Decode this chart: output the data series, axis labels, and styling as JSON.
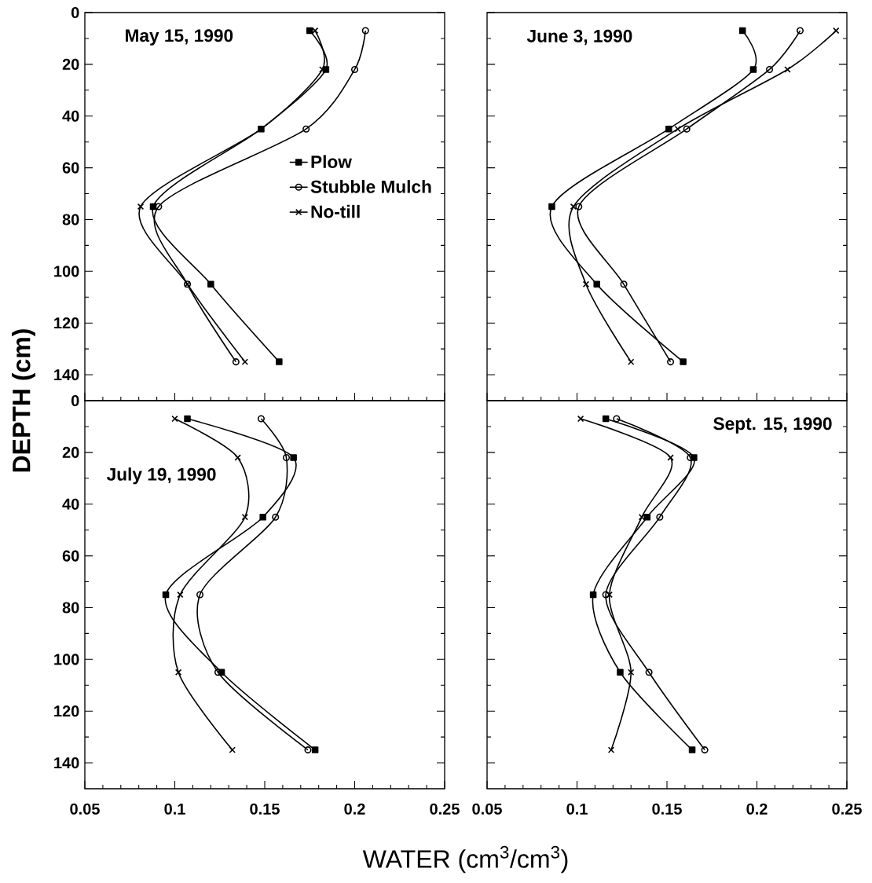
{
  "chart_data": [
    {
      "type": "line",
      "title": "May 15, 1990",
      "ylabel": "DEPTH (cm)",
      "legend": "right",
      "tick_labels": "y",
      "xlim": [
        0.05,
        0.25
      ],
      "xticks": [
        0.05,
        0.1,
        0.15,
        0.2,
        0.25
      ],
      "ylim": [
        150,
        0
      ],
      "yticks": [
        0,
        20,
        40,
        60,
        80,
        100,
        120,
        140
      ],
      "series": [
        {
          "name": "Plow",
          "color": "#000000",
          "marker": "square",
          "x": [
            0.175,
            0.184,
            0.148,
            0.088,
            0.12,
            0.158
          ],
          "values": [
            7,
            22,
            45,
            75,
            105,
            135
          ]
        },
        {
          "name": "Stubble Mulch",
          "color": "#000000",
          "marker": "circle",
          "x": [
            0.206,
            0.2,
            0.173,
            0.091,
            0.107,
            0.134
          ],
          "values": [
            7,
            22,
            45,
            75,
            105,
            135
          ]
        },
        {
          "name": "No-till",
          "color": "#000000",
          "marker": "cross",
          "x": [
            0.178,
            0.182,
            0.148,
            0.081,
            0.107,
            0.139
          ],
          "values": [
            7,
            22,
            45,
            75,
            105,
            135
          ]
        }
      ]
    },
    {
      "type": "line",
      "title": "June 3, 1990",
      "tick_labels": false,
      "xlim": [
        0.05,
        0.25
      ],
      "xticks": [
        0.05,
        0.1,
        0.15,
        0.2,
        0.25
      ],
      "ylim": [
        150,
        0
      ],
      "yticks": [
        0,
        20,
        40,
        60,
        80,
        100,
        120,
        140
      ],
      "series": [
        {
          "color": "#000000",
          "marker": "square",
          "x": [
            0.192,
            0.198,
            0.151,
            0.086,
            0.111,
            0.159
          ],
          "values": [
            7,
            22,
            45,
            75,
            105,
            135
          ]
        },
        {
          "color": "#000000",
          "marker": "circle",
          "x": [
            0.224,
            0.207,
            0.161,
            0.101,
            0.126,
            0.152
          ],
          "values": [
            7,
            22,
            45,
            75,
            105,
            135
          ]
        },
        {
          "color": "#000000",
          "marker": "cross",
          "x": [
            0.244,
            0.217,
            0.156,
            0.098,
            0.105,
            0.13
          ],
          "values": [
            7,
            22,
            45,
            75,
            105,
            135
          ]
        }
      ]
    },
    {
      "type": "line",
      "title": "July 19, 1990",
      "xlabel": "WATER (cm$^{3}$/cm$^{3}$)",
      "xlim": [
        0.05,
        0.25
      ],
      "xticks": [
        0.05,
        0.1,
        0.15,
        0.2,
        0.25
      ],
      "ylim": [
        150,
        0
      ],
      "yticks": [
        0,
        20,
        40,
        60,
        80,
        100,
        120,
        140
      ],
      "series": [
        {
          "color": "#000000",
          "marker": "square",
          "x": [
            0.107,
            0.166,
            0.149,
            0.095,
            0.126,
            0.178
          ],
          "values": [
            7,
            22,
            45,
            75,
            105,
            135
          ]
        },
        {
          "color": "#000000",
          "marker": "circle",
          "x": [
            0.148,
            0.162,
            0.156,
            0.114,
            0.124,
            0.174
          ],
          "values": [
            7,
            22,
            45,
            75,
            105,
            135
          ]
        },
        {
          "color": "#000000",
          "marker": "cross",
          "x": [
            0.1,
            0.135,
            0.139,
            0.103,
            0.102,
            0.132
          ],
          "values": [
            7,
            22,
            45,
            75,
            105,
            135
          ]
        }
      ]
    },
    {
      "type": "line",
      "title": "Sept. 15, 1990",
      "tick_labels": "x",
      "xlim": [
        0.05,
        0.25
      ],
      "xticks": [
        0.05,
        0.1,
        0.15,
        0.2,
        0.25
      ],
      "ylim": [
        150,
        0
      ],
      "yticks": [
        0,
        20,
        40,
        60,
        80,
        100,
        120,
        140
      ],
      "series": [
        {
          "color": "#000000",
          "marker": "square",
          "x": [
            0.116,
            0.165,
            0.139,
            0.109,
            0.124,
            0.164
          ],
          "values": [
            7,
            22,
            45,
            75,
            105,
            135
          ]
        },
        {
          "color": "#000000",
          "marker": "circle",
          "x": [
            0.122,
            0.163,
            0.146,
            0.116,
            0.14,
            0.171
          ],
          "values": [
            7,
            22,
            45,
            75,
            105,
            135
          ]
        },
        {
          "color": "#000000",
          "marker": "cross",
          "x": [
            0.102,
            0.152,
            0.136,
            0.118,
            0.13,
            0.119
          ],
          "values": [
            7,
            22,
            45,
            75,
            105,
            135
          ]
        }
      ]
    }
  ]
}
